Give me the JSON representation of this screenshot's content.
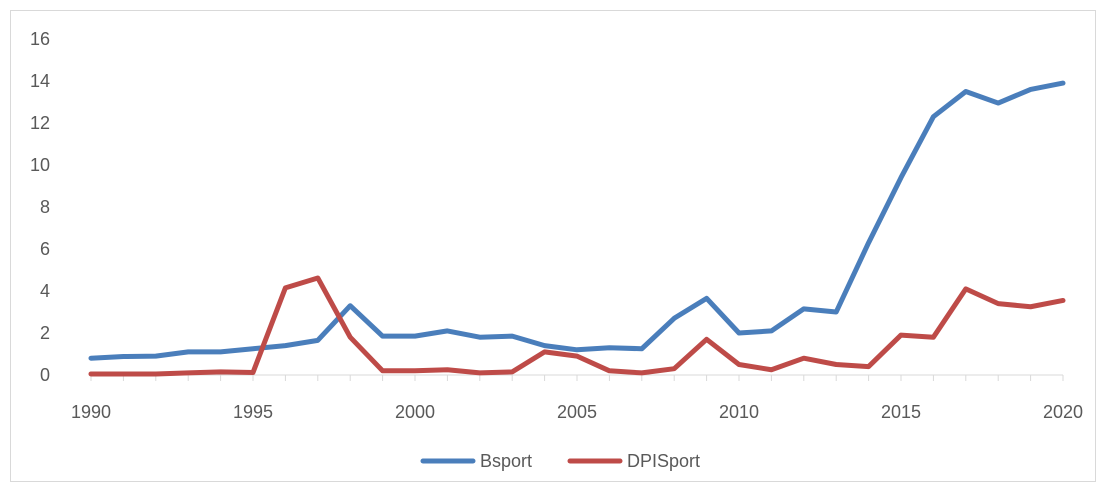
{
  "chart_data": {
    "type": "line",
    "title": "",
    "xlabel": "",
    "ylabel": "",
    "x": [
      1990,
      1991,
      1992,
      1993,
      1994,
      1995,
      1996,
      1997,
      1998,
      1999,
      2000,
      2001,
      2002,
      2003,
      2004,
      2005,
      2006,
      2007,
      2008,
      2009,
      2010,
      2011,
      2012,
      2013,
      2014,
      2015,
      2016,
      2017,
      2018,
      2019,
      2020
    ],
    "xlim": [
      1990,
      2020
    ],
    "ylim": [
      0,
      16
    ],
    "x_ticks": [
      "1990",
      "1995",
      "2000",
      "2005",
      "2010",
      "2015",
      "2020"
    ],
    "y_ticks": [
      "0",
      "2",
      "4",
      "6",
      "8",
      "10",
      "12",
      "14",
      "16"
    ],
    "grid": false,
    "legend_position": "bottom",
    "series": [
      {
        "name": "Bsport",
        "color": "#4a7ebb",
        "values": [
          0.8,
          0.88,
          0.9,
          1.1,
          1.1,
          1.25,
          1.4,
          1.65,
          3.3,
          1.85,
          1.85,
          2.1,
          1.8,
          1.85,
          1.4,
          1.2,
          1.3,
          1.25,
          2.7,
          3.65,
          2.0,
          2.1,
          3.15,
          3.0,
          6.3,
          9.4,
          12.3,
          13.5,
          12.95,
          13.6,
          13.9
        ]
      },
      {
        "name": "DPISport",
        "color": "#be4b48",
        "values": [
          0.05,
          0.05,
          0.05,
          0.1,
          0.15,
          0.12,
          4.15,
          4.62,
          1.8,
          0.2,
          0.2,
          0.25,
          0.1,
          0.15,
          1.1,
          0.9,
          0.2,
          0.1,
          0.3,
          1.7,
          0.5,
          0.25,
          0.8,
          0.5,
          0.4,
          1.9,
          1.8,
          4.1,
          3.4,
          3.25,
          3.55
        ]
      }
    ]
  }
}
